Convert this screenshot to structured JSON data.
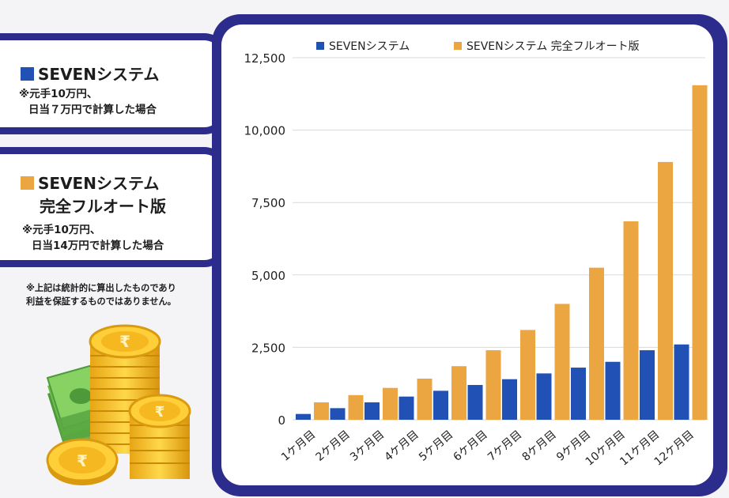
{
  "cards": [
    {
      "title": "SEVENシステム",
      "color": "#2251b5",
      "note_lines": [
        "※元手10万円、",
        "日当７万円で計算した場合"
      ]
    },
    {
      "title": "SEVENシステム",
      "title2": "完全フルオート版",
      "color": "#eba642",
      "note_lines": [
        "※元手10万円、",
        "日当14万円で計算した場合"
      ]
    }
  ],
  "disclaimer": [
    "※上記は統計的に算出したものであり",
    "利益を保証するものではありません。"
  ],
  "colors": {
    "frame": "#2b2c8c",
    "blue": "#2251b5",
    "orange": "#eba642",
    "grid": "#d9d9d9"
  },
  "illustration": {
    "name": "money-coins-illustration"
  },
  "chart_data": {
    "type": "bar",
    "categories": [
      "1ケ月目",
      "2ケ月目",
      "3ケ月目",
      "4ケ月目",
      "5ケ月目",
      "6ケ月目",
      "7ケ月目",
      "8ケ月目",
      "9ケ月目",
      "10ケ月目",
      "11ケ月目",
      "12ケ月目"
    ],
    "series": [
      {
        "name": "SEVENシステム",
        "color": "#2251b5",
        "values": [
          200,
          400,
          600,
          800,
          1000,
          1200,
          1400,
          1600,
          1800,
          2000,
          2400,
          2600
        ]
      },
      {
        "name": "SEVENシステム 完全フルオート版",
        "color": "#eba642",
        "values": [
          600,
          850,
          1100,
          1420,
          1850,
          2400,
          3100,
          4000,
          5250,
          6850,
          8900,
          11550
        ]
      }
    ],
    "yticks": [
      "0",
      "2,500",
      "5,000",
      "7,500",
      "10,000",
      "12,500"
    ],
    "ylim": [
      0,
      12500
    ],
    "grid": true,
    "legend": "top"
  }
}
